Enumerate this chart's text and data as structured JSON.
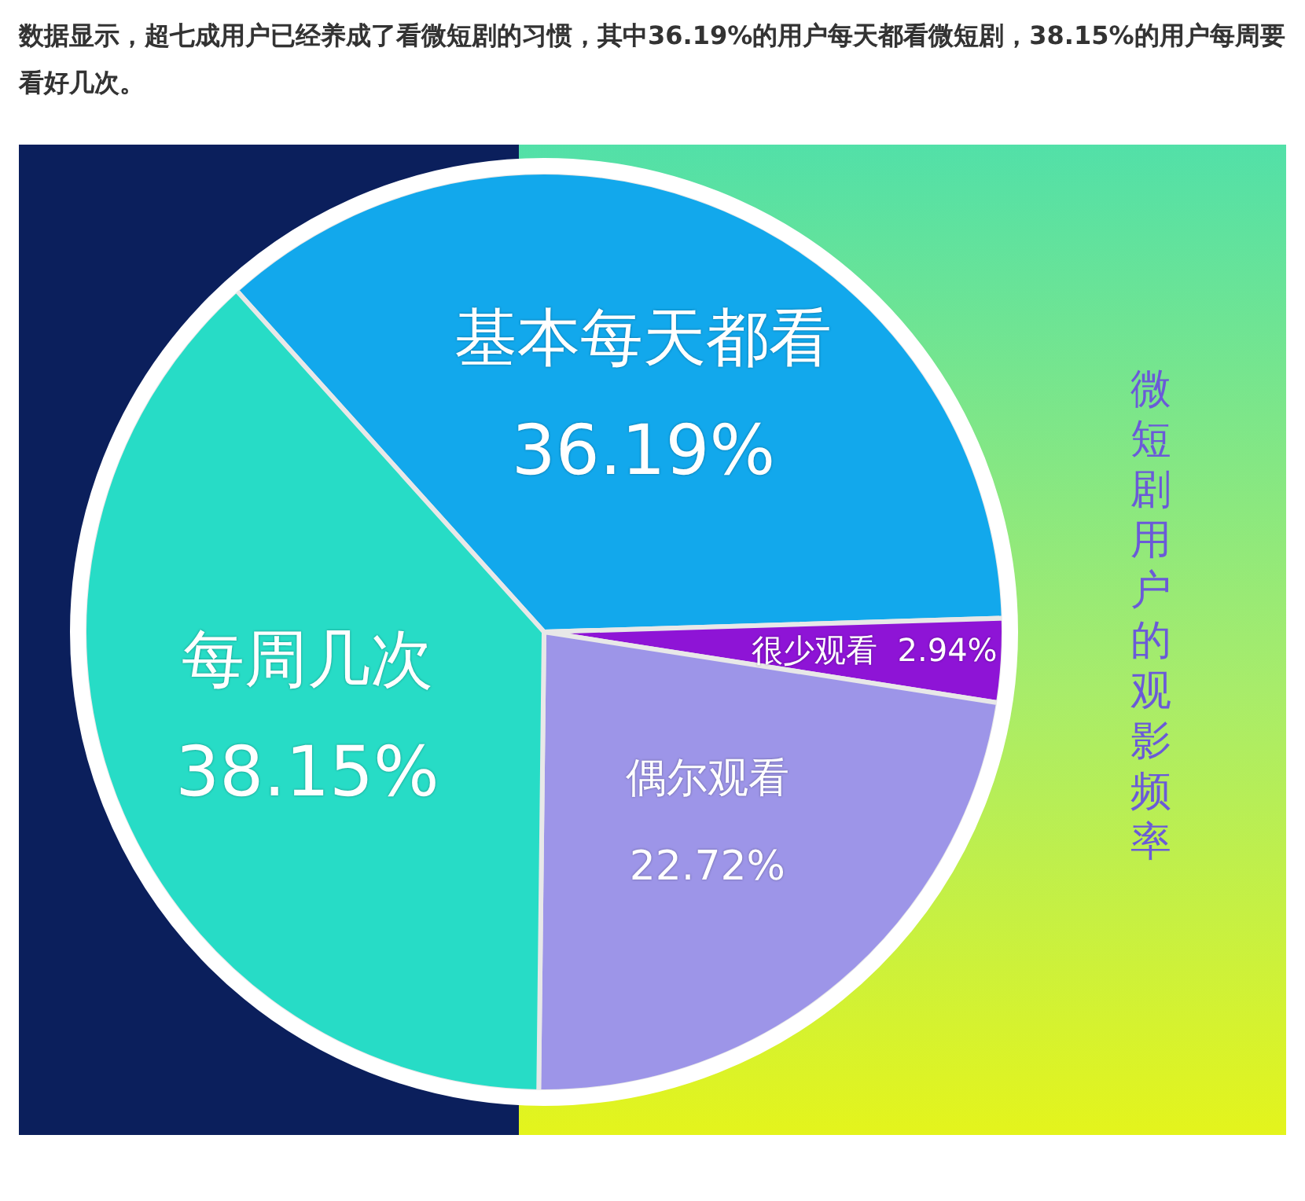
{
  "chart_data": {
    "type": "pie",
    "title": "微短剧用户的观影频率",
    "annotations": [
      "数据显示，超七成用户已经养成了看微短剧的习惯，其中36.19%的用户每天都看微短剧，38.15%的用户每周要看好几次。"
    ],
    "categories": [
      "基本每天都看",
      "很少观看",
      "偶尔观看",
      "每周几次"
    ],
    "values": [
      36.19,
      2.94,
      22.72,
      38.15
    ],
    "value_labels": [
      "36.19%",
      "2.94%",
      "22.72%",
      "38.15%"
    ],
    "colors": [
      "#12a8ec",
      "#8e14d6",
      "#9d95e8",
      "#27dcc6"
    ],
    "legend": false
  }
}
